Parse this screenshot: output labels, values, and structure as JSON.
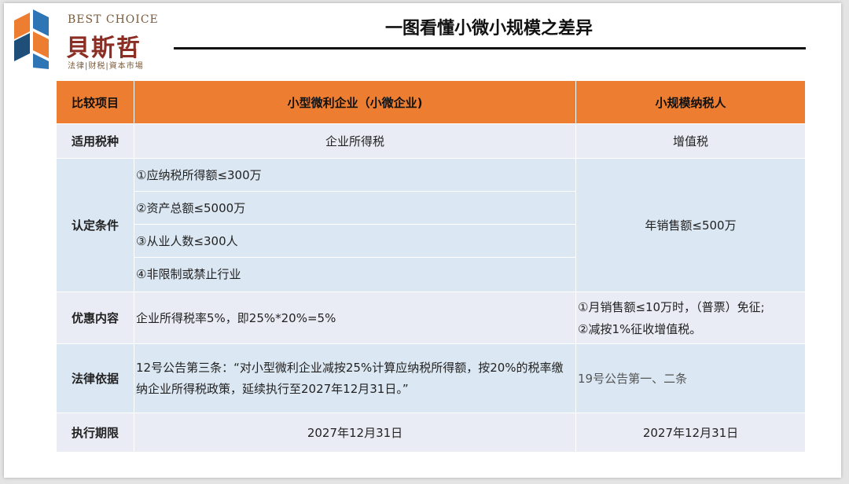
{
  "header": {
    "logo_en": "BEST CHOICE",
    "logo_cn": "貝斯哲",
    "logo_tagline": "法律|财税|資本市場",
    "title": "一图看懂小微小规模之差异"
  },
  "colors": {
    "header_fill": "#ed7d31",
    "row_light": "#e9ecf4",
    "row_blue": "#dbe7f2",
    "logo_red": "#8c2e24",
    "logo_blue": "#2e75b6",
    "logo_orange": "#ed7d31"
  },
  "table": {
    "headers": [
      "比较项目",
      "小型微利企业（小微企业)",
      "小规模纳税人"
    ],
    "rows": {
      "tax_type": {
        "label": "适用税种",
        "small_micro": "企业所得税",
        "small_scale": "增值税"
      },
      "criteria": {
        "label": "认定条件",
        "small_micro": [
          "①应纳税所得额≤300万",
          "②资产总额≤5000万",
          "③从业人数≤300人",
          "④非限制或禁止行业"
        ],
        "small_scale": "年销售额≤500万"
      },
      "preference": {
        "label": "优惠内容",
        "small_micro": "企业所得税率5%，即25%*20%=5%",
        "small_scale": [
          "①月销售额≤10万时，（普票）免征;",
          "②减按1%征收增值税。"
        ]
      },
      "legal_basis": {
        "label": "法律依据",
        "small_micro": "12号公告第三条：“对小型微利企业减按25%计算应纳税所得额，按20%的税率缴纳企业所得税政策，延续执行至2027年12月31日。”",
        "small_scale": "19号公告第一、二条"
      },
      "term": {
        "label": "执行期限",
        "small_micro": "2027年12月31日",
        "small_scale": "2027年12月31日"
      }
    }
  }
}
